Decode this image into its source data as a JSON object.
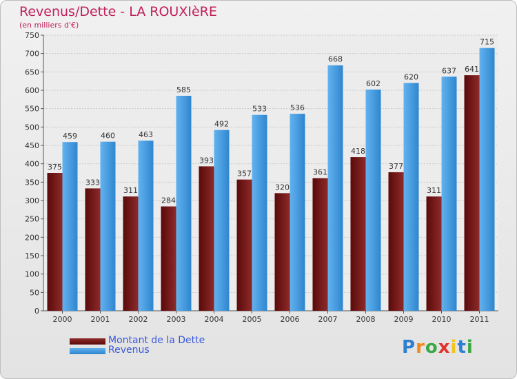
{
  "chart_data": {
    "type": "bar",
    "title": "Revenus/Dette - LA ROUXIèRE",
    "subtitle": "(en milliers d'€)",
    "categories": [
      "2000",
      "2001",
      "2002",
      "2003",
      "2004",
      "2005",
      "2006",
      "2007",
      "2008",
      "2009",
      "2010",
      "2011"
    ],
    "series": [
      {
        "name": "Montant de la Dette",
        "color": "#7a1a1a",
        "values": [
          375,
          333,
          311,
          284,
          393,
          357,
          320,
          361,
          418,
          377,
          311,
          641
        ]
      },
      {
        "name": "Revenus",
        "color": "#4da2e4",
        "values": [
          459,
          460,
          463,
          585,
          492,
          533,
          536,
          668,
          602,
          620,
          637,
          715
        ]
      }
    ],
    "ylim": [
      0,
      750
    ],
    "yticks": [
      0,
      50,
      100,
      150,
      200,
      250,
      300,
      350,
      400,
      450,
      500,
      550,
      600,
      650,
      700,
      750
    ],
    "grid": true,
    "legend_position": "bottom-left"
  },
  "logo": {
    "text": "Proxiti",
    "letters": [
      "P",
      "r",
      "o",
      "x",
      "i",
      "t",
      "i"
    ],
    "colors": [
      "#2f7fd0",
      "#f08a1c",
      "#3aa845",
      "#e2322c",
      "#f0c419",
      "#2f7fd0",
      "#3aa845"
    ]
  }
}
